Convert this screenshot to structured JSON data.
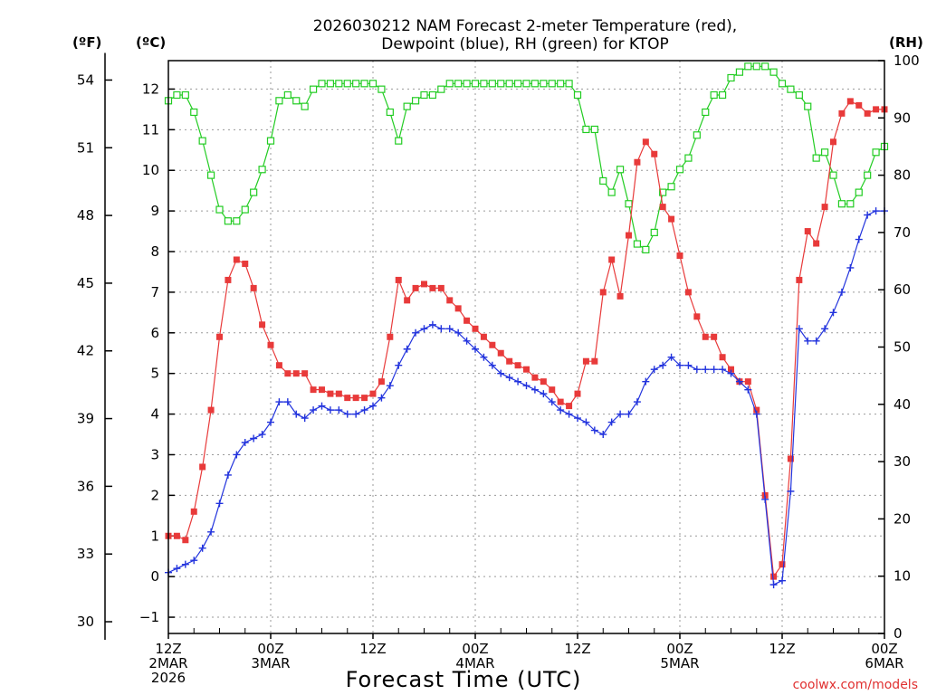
{
  "chart_data": {
    "type": "line",
    "title_lines": [
      "2026030212 NAM Forecast 2-meter Temperature (red),",
      "Dewpoint (blue), RH (green) for KTOP"
    ],
    "xlabel": "Forecast Time (UTC)",
    "credit": "coolwx.com/models",
    "axis_units": {
      "fahrenheit": "(ºF)",
      "celsius": "(ºC)",
      "rh": "(RH)"
    },
    "x_range_hours": [
      0,
      84
    ],
    "x_ticks": [
      {
        "hour": 0,
        "lines": [
          "12Z",
          "2MAR",
          "2026"
        ]
      },
      {
        "hour": 12,
        "lines": [
          "00Z",
          "3MAR"
        ]
      },
      {
        "hour": 24,
        "lines": [
          "12Z"
        ]
      },
      {
        "hour": 36,
        "lines": [
          "00Z",
          "4MAR"
        ]
      },
      {
        "hour": 48,
        "lines": [
          "12Z"
        ]
      },
      {
        "hour": 60,
        "lines": [
          "00Z",
          "5MAR"
        ]
      },
      {
        "hour": 72,
        "lines": [
          "12Z"
        ]
      },
      {
        "hour": 84,
        "lines": [
          "00Z",
          "6MAR"
        ]
      }
    ],
    "celsius_range": [
      -1.4,
      12.7
    ],
    "celsius_ticks": [
      -1,
      0,
      1,
      2,
      3,
      4,
      5,
      6,
      7,
      8,
      9,
      10,
      11,
      12
    ],
    "fahrenheit_ticks": [
      30,
      33,
      36,
      39,
      42,
      45,
      48,
      51,
      54
    ],
    "rh_range": [
      0,
      100
    ],
    "rh_ticks": [
      0,
      10,
      20,
      30,
      40,
      50,
      60,
      70,
      80,
      90,
      100
    ],
    "colors": {
      "temperature": "#e83a3a",
      "dewpoint": "#2233dd",
      "rh": "#22cc22"
    },
    "series": [
      {
        "name": "Temperature (red)",
        "unit": "C",
        "x": [
          0,
          1,
          2,
          3,
          4,
          5,
          6,
          7,
          8,
          9,
          10,
          11,
          12,
          13,
          14,
          15,
          16,
          17,
          18,
          19,
          20,
          21,
          22,
          23,
          24,
          25,
          26,
          27,
          28,
          29,
          30,
          31,
          32,
          33,
          34,
          35,
          36,
          37,
          38,
          39,
          40,
          41,
          42,
          43,
          44,
          45,
          46,
          47,
          48,
          49,
          50,
          51,
          52,
          53,
          54,
          55,
          56,
          57,
          58,
          59,
          60,
          61,
          62,
          63,
          64,
          65,
          66,
          67,
          68,
          69,
          70,
          71,
          72,
          73,
          74,
          75,
          76,
          77,
          78,
          79,
          80,
          81,
          82,
          83,
          84
        ],
        "values": [
          1.0,
          1.0,
          0.9,
          1.6,
          2.7,
          4.1,
          5.9,
          7.3,
          7.8,
          7.7,
          7.1,
          6.2,
          5.7,
          5.2,
          5.0,
          5.0,
          5.0,
          4.6,
          4.6,
          4.5,
          4.5,
          4.4,
          4.4,
          4.4,
          4.5,
          4.8,
          5.9,
          7.3,
          6.8,
          7.1,
          7.2,
          7.1,
          7.1,
          6.8,
          6.6,
          6.3,
          6.1,
          5.9,
          5.7,
          5.5,
          5.3,
          5.2,
          5.1,
          4.9,
          4.8,
          4.6,
          4.3,
          4.2,
          4.5,
          5.3,
          5.3,
          7.0,
          7.8,
          6.9,
          8.4,
          10.2,
          10.7,
          10.4,
          9.1,
          8.8,
          7.9,
          7.0,
          6.4,
          5.9,
          5.9,
          5.4,
          5.1,
          4.8,
          4.8,
          4.1,
          2.0,
          0.0,
          0.3,
          2.9,
          7.3,
          8.5,
          8.2,
          9.1,
          10.7,
          11.4,
          11.7,
          11.6,
          11.4,
          11.5,
          11.5
        ],
        "note_x_spacing": "hourly"
      },
      {
        "name": "Dewpoint (blue)",
        "unit": "C",
        "x": [
          0,
          1,
          2,
          3,
          4,
          5,
          6,
          7,
          8,
          9,
          10,
          11,
          12,
          13,
          14,
          15,
          16,
          17,
          18,
          19,
          20,
          21,
          22,
          23,
          24,
          25,
          26,
          27,
          28,
          29,
          30,
          31,
          32,
          33,
          34,
          35,
          36,
          37,
          38,
          39,
          40,
          41,
          42,
          43,
          44,
          45,
          46,
          47,
          48,
          49,
          50,
          51,
          52,
          53,
          54,
          55,
          56,
          57,
          58,
          59,
          60,
          61,
          62,
          63,
          64,
          65,
          66,
          67,
          68,
          69,
          70,
          71,
          72,
          73,
          74,
          75,
          76,
          77,
          78,
          79,
          80,
          81,
          82,
          83,
          84
        ],
        "values": [
          0.1,
          0.2,
          0.3,
          0.4,
          0.7,
          1.1,
          1.8,
          2.5,
          3.0,
          3.3,
          3.4,
          3.5,
          3.8,
          4.3,
          4.3,
          4.0,
          3.9,
          4.1,
          4.2,
          4.1,
          4.1,
          4.0,
          4.0,
          4.1,
          4.2,
          4.4,
          4.7,
          5.2,
          5.6,
          6.0,
          6.1,
          6.2,
          6.1,
          6.1,
          6.0,
          5.8,
          5.6,
          5.4,
          5.2,
          5.0,
          4.9,
          4.8,
          4.7,
          4.6,
          4.5,
          4.3,
          4.1,
          4.0,
          3.9,
          3.8,
          3.6,
          3.5,
          3.8,
          4.0,
          4.0,
          4.3,
          4.8,
          5.1,
          5.2,
          5.4,
          5.2,
          5.2,
          5.1,
          5.1,
          5.1,
          5.1,
          5.0,
          4.8,
          4.6,
          4.0,
          1.9,
          -0.2,
          -0.1,
          2.1,
          6.1,
          5.8,
          5.8,
          6.1,
          6.5,
          7.0,
          7.6,
          8.3,
          8.9,
          9.0,
          9.0
        ]
      },
      {
        "name": "RH (green)",
        "unit": "%",
        "x": [
          0,
          1,
          2,
          3,
          4,
          5,
          6,
          7,
          8,
          9,
          10,
          11,
          12,
          13,
          14,
          15,
          16,
          17,
          18,
          19,
          20,
          21,
          22,
          23,
          24,
          25,
          26,
          27,
          28,
          29,
          30,
          31,
          32,
          33,
          34,
          35,
          36,
          37,
          38,
          39,
          40,
          41,
          42,
          43,
          44,
          45,
          46,
          47,
          48,
          49,
          50,
          51,
          52,
          53,
          54,
          55,
          56,
          57,
          58,
          59,
          60,
          61,
          62,
          63,
          64,
          65,
          66,
          67,
          68,
          69,
          70,
          71,
          72,
          73,
          74,
          75,
          76,
          77,
          78,
          79,
          80,
          81,
          82,
          83,
          84
        ],
        "values": [
          93,
          94,
          94,
          91,
          86,
          80,
          74,
          72,
          72,
          74,
          77,
          81,
          86,
          93,
          94,
          93,
          92,
          95,
          96,
          96,
          96,
          96,
          96,
          96,
          96,
          95,
          91,
          86,
          92,
          93,
          94,
          94,
          95,
          96,
          96,
          96,
          96,
          96,
          96,
          96,
          96,
          96,
          96,
          96,
          96,
          96,
          96,
          96,
          94,
          88,
          88,
          79,
          77,
          81,
          75,
          68,
          67,
          70,
          77,
          78,
          81,
          83,
          87,
          91,
          94,
          94,
          97,
          98,
          99,
          99,
          99,
          98,
          96,
          95,
          94,
          92,
          83,
          84,
          80,
          75,
          75,
          77,
          80,
          84,
          85
        ]
      }
    ]
  }
}
